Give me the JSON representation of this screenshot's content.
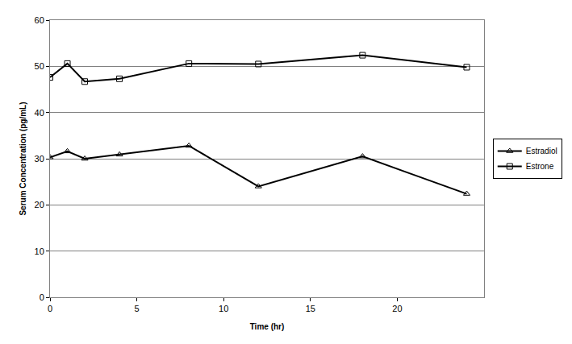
{
  "chart_data": {
    "type": "line",
    "x_label": "Time (hr)",
    "y_label": "Serum Concentration (pg/mL)",
    "x": [
      0,
      1,
      2,
      4,
      8,
      12,
      18,
      24
    ],
    "series": [
      {
        "name": "Estradiol",
        "color": "#000000",
        "marker": "triangle-up-open",
        "line_style": "solid",
        "values": [
          30.3,
          31.6,
          30.0,
          30.9,
          32.8,
          24.0,
          30.5,
          22.4
        ]
      },
      {
        "name": "Estrone",
        "color": "#000000",
        "marker": "square-open",
        "line_style": "solid",
        "values": [
          47.6,
          50.6,
          46.7,
          47.3,
          50.6,
          50.5,
          52.4,
          49.8
        ]
      }
    ],
    "xlim": [
      0,
      25
    ],
    "xticks": [
      0,
      5,
      10,
      15,
      20
    ],
    "ylim": [
      0,
      60
    ],
    "yticks": [
      0,
      10,
      20,
      30,
      40,
      50,
      60
    ],
    "grid": true,
    "legend": "right"
  }
}
